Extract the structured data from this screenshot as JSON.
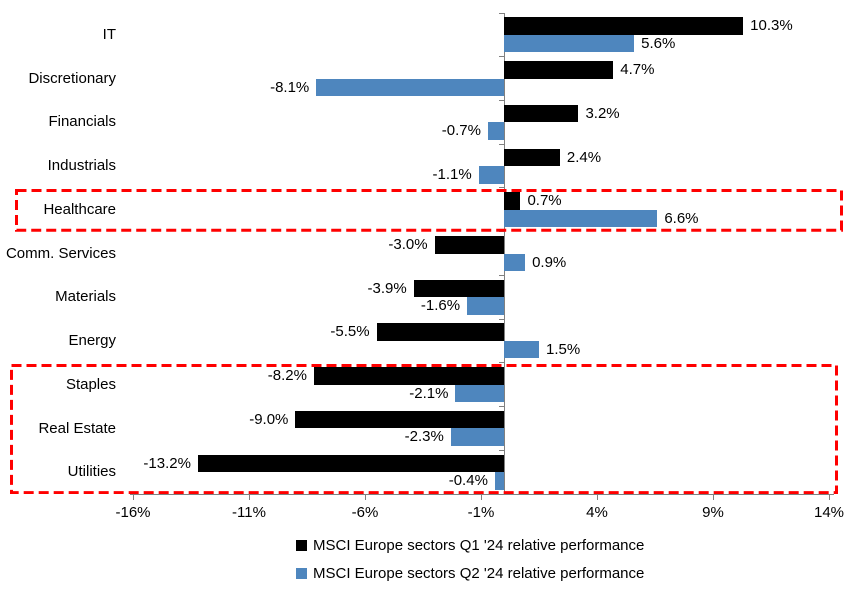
{
  "chart_data": {
    "type": "bar",
    "orientation": "horizontal",
    "categories": [
      "IT",
      "Discretionary",
      "Financials",
      "Industrials",
      "Healthcare",
      "Comm. Services",
      "Materials",
      "Energy",
      "Staples",
      "Real Estate",
      "Utilities"
    ],
    "series": [
      {
        "name": "MSCI Europe sectors Q1 '24 relative performance",
        "color": "#000000",
        "values": [
          10.3,
          4.7,
          3.2,
          2.4,
          0.7,
          -3.0,
          -3.9,
          -5.5,
          -8.2,
          -9.0,
          -13.2
        ],
        "data_labels": [
          "10.3%",
          "4.7%",
          "3.2%",
          "2.4%",
          "0.7%",
          "-3.0%",
          "-3.9%",
          "-5.5%",
          "-8.2%",
          "-9.0%",
          "-13.2%"
        ]
      },
      {
        "name": "MSCI Europe sectors Q2 '24 relative performance",
        "color": "#4E86BE",
        "values": [
          5.6,
          -8.1,
          -0.7,
          -1.1,
          6.6,
          0.9,
          -1.6,
          1.5,
          -2.1,
          -2.3,
          -0.4
        ],
        "data_labels": [
          "5.6%",
          "-8.1%",
          "-0.7%",
          "-1.1%",
          "6.6%",
          "0.9%",
          "-1.6%",
          "1.5%",
          "-2.1%",
          "-2.3%",
          "-0.4%"
        ]
      }
    ],
    "x_axis": {
      "min": -16,
      "max": 14,
      "tick_values": [
        -16,
        -11,
        -6,
        -1,
        4,
        9,
        14
      ],
      "tick_labels": [
        "-16%",
        "-11%",
        "-6%",
        "-1%",
        "4%",
        "9%",
        "14%"
      ]
    },
    "grid": false,
    "legend_position": "bottom",
    "axis_color": "#808080",
    "highlight_color": "#FF0000",
    "highlights": [
      {
        "name": "highlight-box-healthcare",
        "from_category": "Healthcare",
        "to_category": "Healthcare"
      },
      {
        "name": "highlight-box-staples-realestate-utilities",
        "from_category": "Staples",
        "to_category": "Utilities"
      }
    ]
  }
}
